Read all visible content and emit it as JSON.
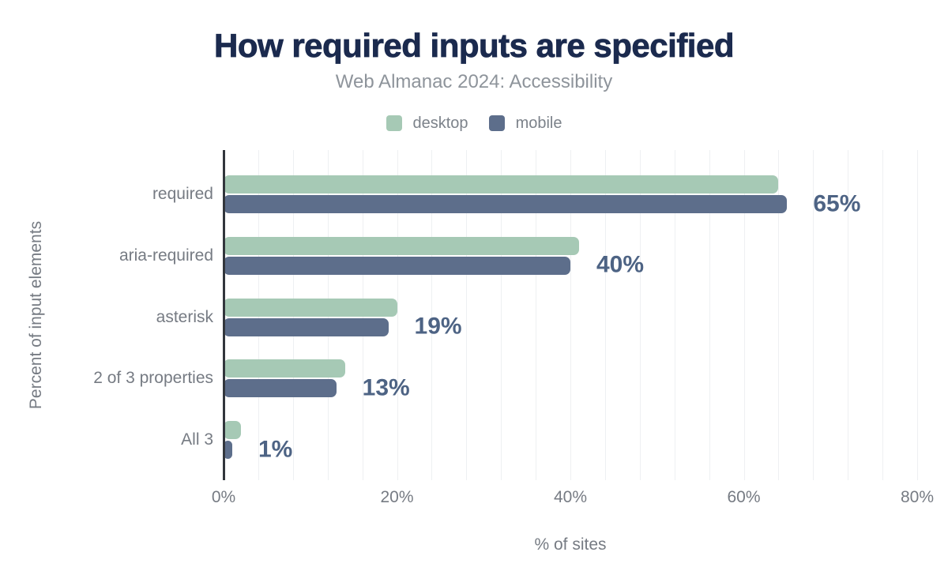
{
  "chart_data": {
    "type": "bar",
    "orientation": "horizontal",
    "title": "How required inputs are specified",
    "subtitle": "Web Almanac 2024: Accessibility",
    "categories": [
      "required",
      "aria-required",
      "asterisk",
      "2 of 3 properties",
      "All 3"
    ],
    "series": [
      {
        "name": "desktop",
        "color": "#a6c9b5",
        "values": [
          64,
          41,
          20,
          14,
          2
        ]
      },
      {
        "name": "mobile",
        "color": "#5d6e8b",
        "values": [
          65,
          40,
          19,
          13,
          1
        ]
      }
    ],
    "annotations": [
      "65%",
      "40%",
      "19%",
      "13%",
      "1%"
    ],
    "annotation_series": "mobile",
    "xlabel": "% of sites",
    "ylabel": "Percent of input elements",
    "xlim": [
      0,
      80
    ],
    "x_ticks": [
      "0%",
      "20%",
      "40%",
      "60%",
      "80%"
    ],
    "x_tick_values": [
      0,
      20,
      40,
      60,
      80
    ],
    "grid": true,
    "grid_step": 4,
    "legend_position": "top"
  },
  "colors": {
    "title": "#1b2a4e",
    "subtitle": "#8e949b",
    "axis_text": "#767b83",
    "legend_text": "#7c828a",
    "value_label": "#4d6384",
    "gridline": "#eef0f2",
    "axis_line": "#32363c",
    "background": "#ffffff"
  }
}
